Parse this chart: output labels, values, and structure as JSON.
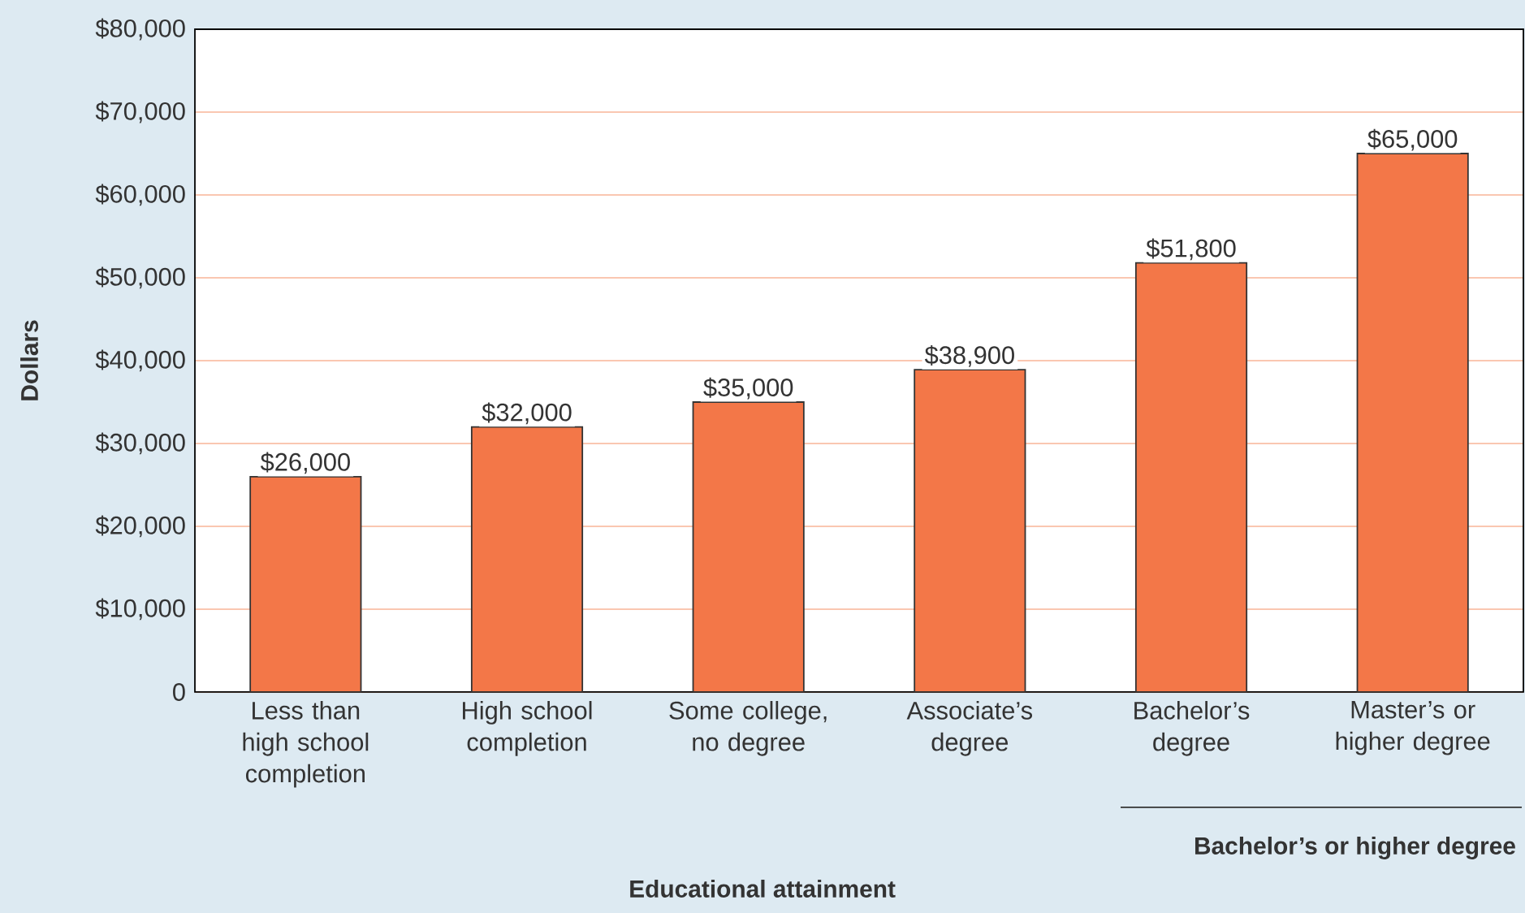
{
  "chart_data": {
    "type": "bar",
    "xlabel": "Educational attainment",
    "ylabel": "Dollars",
    "categories": [
      "Less than high school completion",
      "High school completion",
      "Some college, no degree",
      "Associate’s degree",
      "Bachelor’s degree",
      "Master’s or higher degree"
    ],
    "values": [
      26000,
      32000,
      35000,
      38900,
      51800,
      65000
    ],
    "value_labels": [
      "$26,000",
      "$32,000",
      "$35,000",
      "$38,900",
      "$51,800",
      "$65,000"
    ],
    "color": "#f37748",
    "ylim": [
      0,
      80000
    ],
    "yticks": [
      0,
      {
        "value": 10000,
        "label": "$10,000"
      },
      {
        "value": 20000,
        "label": "$20,000"
      },
      {
        "value": 30000,
        "label": "$30,000"
      },
      {
        "value": 40000,
        "label": "$40,000"
      },
      {
        "value": 50000,
        "label": "$50,000"
      },
      {
        "value": 60000,
        "label": "$60,000"
      },
      {
        "value": 70000,
        "label": "$70,000"
      },
      {
        "value": 80000,
        "label": "$80,000"
      }
    ],
    "grid": "y",
    "annotations": [
      "Bachelor’s or higher degree"
    ]
  }
}
